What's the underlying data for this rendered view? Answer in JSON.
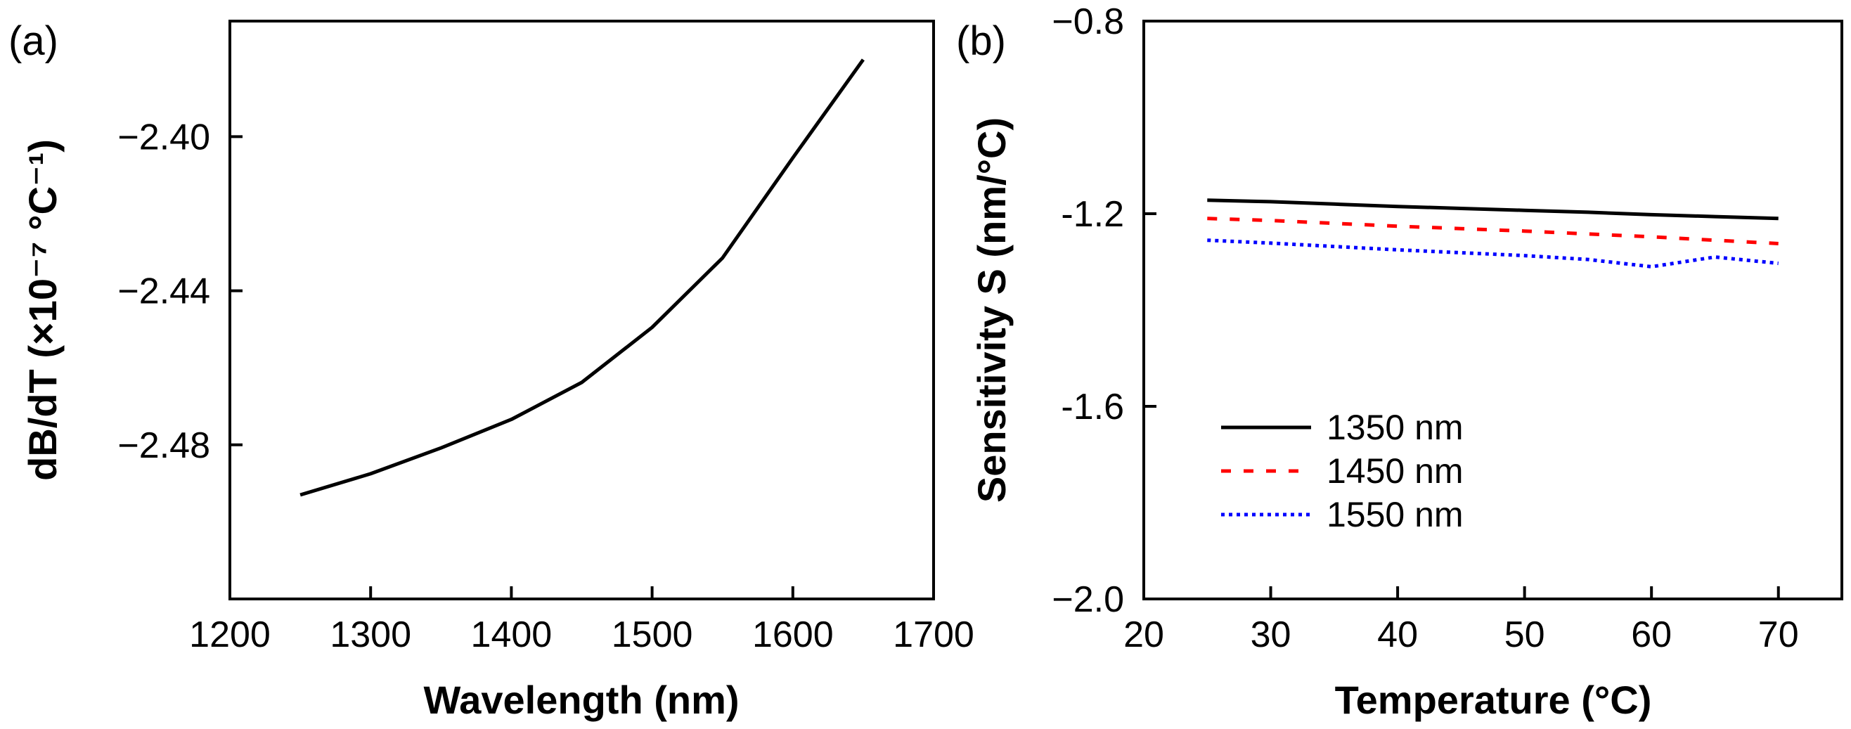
{
  "chart_data": [
    {
      "type": "line",
      "panel_label": "(a)",
      "xlabel": "Wavelength (nm)",
      "ylabel": "dB/dT (×10⁻⁷ °C⁻¹)",
      "xlim": [
        1200,
        1700
      ],
      "ylim": [
        -2.52,
        -2.37
      ],
      "x_ticks": [
        1200,
        1300,
        1400,
        1500,
        1600,
        1700
      ],
      "y_ticks": [
        -2.48,
        -2.44,
        -2.4
      ],
      "x_tick_labels": [
        "1200",
        "1300",
        "1400",
        "1500",
        "1600",
        "1700"
      ],
      "y_tick_labels": [
        "−2.48",
        "−2.44",
        "−2.40"
      ],
      "grid": false,
      "series": [
        {
          "color": "#000000",
          "dash": "solid",
          "x": [
            1250,
            1300,
            1350,
            1400,
            1450,
            1500,
            1550,
            1600,
            1650
          ],
          "y": [
            -2.493,
            -2.4875,
            -2.4808,
            -2.4734,
            -2.4638,
            -2.4495,
            -2.4315,
            -2.4055,
            -2.38
          ]
        }
      ]
    },
    {
      "type": "line",
      "panel_label": "(b)",
      "xlabel": "Temperature (°C)",
      "ylabel": "Sensitivity S (nm/°C)",
      "xlim": [
        20,
        75
      ],
      "ylim": [
        -2.0,
        -0.8
      ],
      "x_ticks": [
        20,
        30,
        40,
        50,
        60,
        70
      ],
      "y_ticks": [
        -2.0,
        -1.6,
        -1.2,
        -0.8
      ],
      "x_tick_labels": [
        "20",
        "30",
        "40",
        "50",
        "60",
        "70"
      ],
      "y_tick_labels": [
        "−2.0",
        "-1.6",
        "-1.2",
        "−0.8"
      ],
      "grid": false,
      "legend_position": "lower-left",
      "series": [
        {
          "name": "1350 nm",
          "color": "#000000",
          "dash": "solid",
          "x": [
            25,
            30,
            35,
            40,
            45,
            50,
            55,
            60,
            65,
            70
          ],
          "y": [
            -1.172,
            -1.175,
            -1.18,
            -1.185,
            -1.189,
            -1.193,
            -1.197,
            -1.202,
            -1.206,
            -1.21
          ]
        },
        {
          "name": "1450 nm",
          "color": "#ff0000",
          "dash": "dashed",
          "x": [
            25,
            30,
            35,
            40,
            45,
            50,
            55,
            60,
            65,
            70
          ],
          "y": [
            -1.21,
            -1.214,
            -1.22,
            -1.226,
            -1.231,
            -1.236,
            -1.242,
            -1.248,
            -1.255,
            -1.262
          ]
        },
        {
          "name": "1550 nm",
          "color": "#0000ff",
          "dash": "dotted",
          "x": [
            25,
            30,
            35,
            40,
            45,
            50,
            55,
            60,
            65,
            70
          ],
          "y": [
            -1.255,
            -1.261,
            -1.268,
            -1.275,
            -1.281,
            -1.287,
            -1.295,
            -1.31,
            -1.29,
            -1.303
          ]
        }
      ]
    }
  ]
}
